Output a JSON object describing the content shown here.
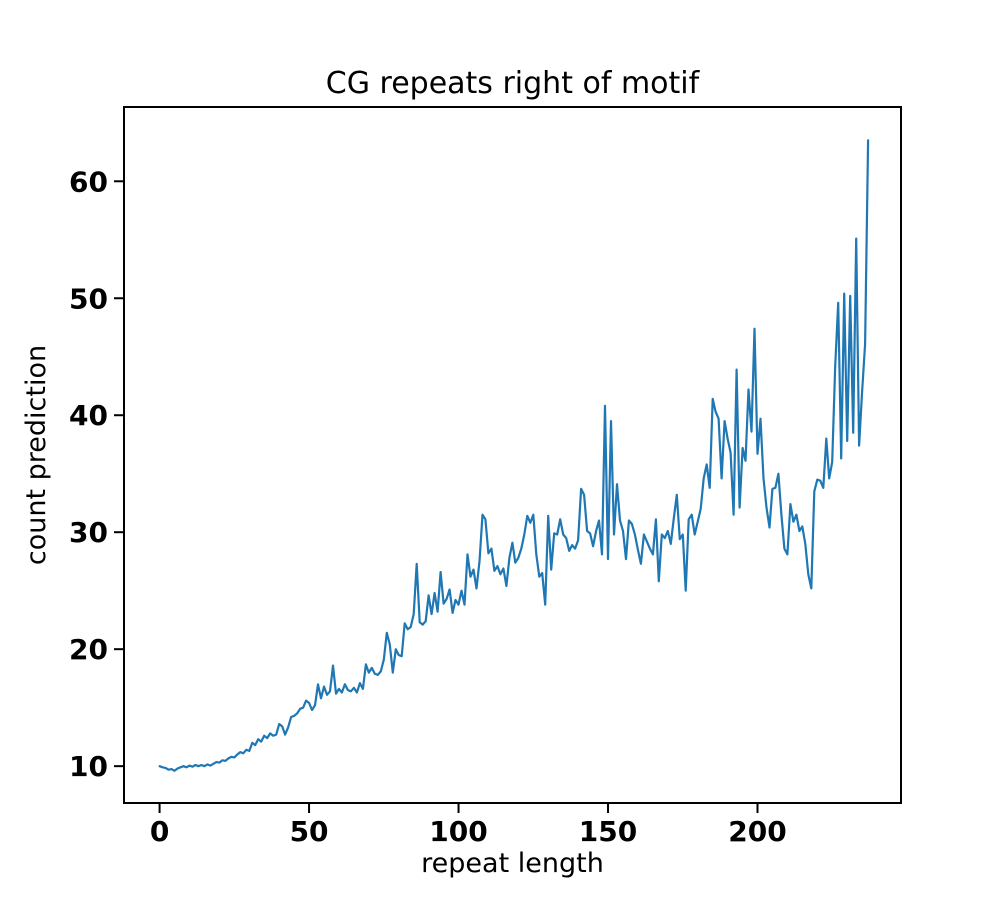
{
  "chart_data": {
    "type": "line",
    "title": "CG repeats right of motif",
    "xlabel": "repeat length",
    "ylabel": "count prediction",
    "x_ticks": [
      0,
      50,
      100,
      150,
      200
    ],
    "y_ticks": [
      10,
      20,
      30,
      40,
      50,
      60
    ],
    "xlim": [
      -11.9,
      248.0
    ],
    "ylim": [
      6.85,
      66.35
    ],
    "grid": false,
    "legend": false,
    "line_color": "#1f77b4",
    "x_start": 0,
    "x_step": 1,
    "values": [
      10.0,
      9.9,
      9.85,
      9.7,
      9.75,
      9.6,
      9.8,
      9.9,
      10.0,
      9.9,
      10.05,
      9.95,
      10.1,
      10.0,
      10.1,
      10.0,
      10.15,
      10.05,
      10.2,
      10.35,
      10.3,
      10.5,
      10.45,
      10.65,
      10.8,
      10.75,
      11.0,
      11.2,
      11.1,
      11.4,
      11.3,
      12.0,
      11.8,
      12.3,
      12.1,
      12.6,
      12.4,
      12.8,
      12.6,
      12.7,
      13.6,
      13.4,
      12.7,
      13.3,
      14.2,
      14.3,
      14.5,
      14.9,
      15.0,
      15.6,
      15.4,
      14.8,
      15.2,
      17.0,
      15.8,
      16.8,
      16.1,
      16.4,
      18.6,
      16.2,
      16.6,
      16.3,
      17.0,
      16.5,
      16.4,
      16.7,
      16.3,
      17.1,
      16.6,
      18.7,
      18.0,
      18.4,
      17.9,
      17.8,
      18.1,
      19.1,
      21.4,
      20.4,
      18.0,
      20.0,
      19.5,
      19.4,
      22.2,
      21.7,
      21.9,
      23.0,
      27.3,
      22.3,
      22.1,
      22.4,
      24.6,
      23.0,
      24.8,
      23.2,
      26.6,
      23.9,
      24.3,
      25.1,
      23.1,
      24.2,
      23.8,
      25.0,
      23.8,
      28.1,
      26.2,
      26.8,
      25.2,
      27.5,
      31.5,
      31.1,
      28.2,
      28.6,
      26.7,
      27.1,
      26.4,
      26.9,
      25.4,
      27.8,
      29.1,
      27.4,
      27.8,
      28.6,
      29.8,
      31.4,
      30.8,
      31.5,
      28.1,
      26.2,
      26.5,
      23.8,
      31.4,
      26.8,
      29.9,
      29.8,
      31.1,
      29.8,
      29.5,
      28.4,
      28.9,
      28.6,
      29.3,
      33.7,
      33.2,
      30.1,
      29.9,
      28.8,
      30.1,
      31.0,
      28.1,
      40.8,
      27.7,
      39.5,
      29.8,
      34.1,
      31.0,
      30.1,
      27.7,
      31.0,
      30.7,
      29.8,
      28.5,
      27.3,
      29.8,
      29.2,
      28.6,
      28.1,
      31.1,
      25.8,
      29.8,
      29.5,
      30.1,
      29.0,
      31.2,
      33.2,
      29.4,
      29.8,
      25.0,
      31.1,
      31.5,
      29.8,
      30.9,
      32.0,
      34.6,
      35.8,
      33.8,
      41.4,
      40.3,
      39.7,
      34.6,
      39.5,
      38.0,
      36.8,
      31.5,
      43.9,
      32.1,
      37.2,
      36.1,
      42.2,
      38.6,
      47.4,
      36.7,
      39.7,
      34.6,
      32.1,
      30.4,
      33.7,
      33.8,
      35.0,
      31.5,
      28.6,
      28.1,
      32.4,
      30.9,
      31.5,
      30.1,
      30.5,
      29.0,
      26.4,
      25.2,
      33.5,
      34.5,
      34.4,
      33.8,
      38.0,
      34.6,
      36.0,
      44.2,
      49.6,
      36.3,
      50.4,
      37.8,
      50.2,
      38.5,
      55.1,
      37.4,
      42.0,
      46.1,
      63.5
    ]
  }
}
